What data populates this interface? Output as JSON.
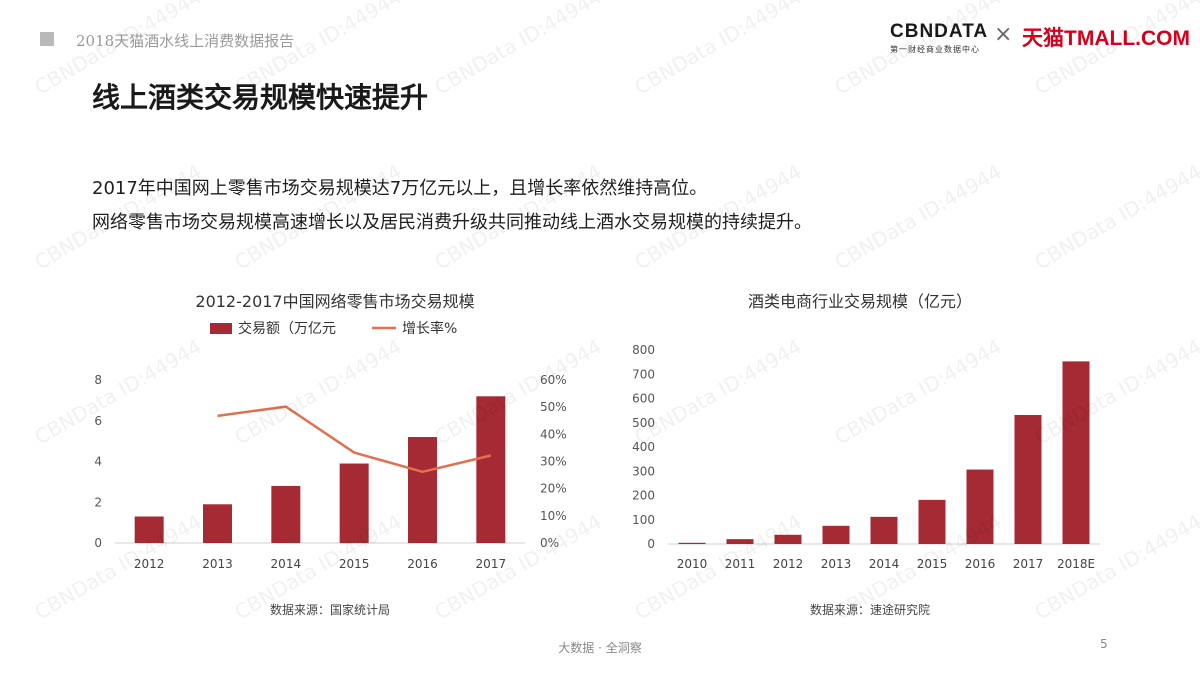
{
  "header": {
    "report_title": "2018天猫酒水线上消费数据报告",
    "logo_cbn": "CBNDATA",
    "logo_cbn_sub": "第一财经商业数据中心",
    "logo_sep": "×",
    "logo_tmall": "天猫TMALL.COM"
  },
  "page": {
    "title": "线上酒类交易规模快速提升",
    "desc_line1": "2017年中国网上零售市场交易规模达7万亿元以上，且增长率依然维持高位。",
    "desc_line2": "网络零售市场交易规模高速增长以及居民消费升级共同推动线上酒水交易规模的持续提升。",
    "footer": "大数据 · 全洞察",
    "page_number": "5"
  },
  "watermark": "CBNData ID:44944",
  "colors": {
    "bar": "#a52a34",
    "line": "#e07050"
  },
  "chart_data": [
    {
      "type": "bar",
      "title": "2012-2017中国网络零售市场交易规模",
      "categories": [
        "2012",
        "2013",
        "2014",
        "2015",
        "2016",
        "2017"
      ],
      "series": [
        {
          "name": "交易额（万亿元",
          "type": "bar",
          "axis": "left",
          "values": [
            1.3,
            1.9,
            2.8,
            3.9,
            5.2,
            7.2
          ]
        },
        {
          "name": "增长率%",
          "type": "line",
          "axis": "right",
          "values": [
            null,
            46.8,
            50.2,
            33.3,
            26.2,
            32.2
          ]
        }
      ],
      "ylim": [
        0,
        8
      ],
      "yticks": [
        "0",
        "2",
        "4",
        "6",
        "8"
      ],
      "y2lim": [
        0,
        60
      ],
      "y2ticks": [
        "0%",
        "10%",
        "20%",
        "30%",
        "40%",
        "50%",
        "60%"
      ],
      "legend": "top",
      "grid": false,
      "source": "数据来源：国家统计局"
    },
    {
      "type": "bar",
      "title": "酒类电商行业交易规模（亿元）",
      "categories": [
        "2010",
        "2011",
        "2012",
        "2013",
        "2014",
        "2015",
        "2016",
        "2017",
        "2018E"
      ],
      "values": [
        5,
        20,
        38,
        75,
        112,
        182,
        307,
        532,
        753
      ],
      "ylim": [
        0,
        800
      ],
      "yticks": [
        "0",
        "100",
        "200",
        "300",
        "400",
        "500",
        "600",
        "700",
        "800"
      ],
      "grid": false,
      "source": "数据来源：速途研究院"
    }
  ]
}
